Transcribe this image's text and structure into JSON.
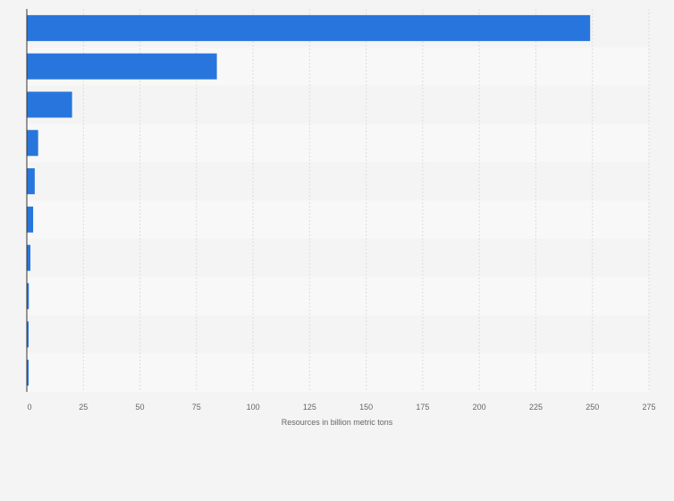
{
  "chart_data": {
    "type": "bar",
    "orientation": "horizontal",
    "title": "",
    "xlabel": "Resources in billion metric tons",
    "ylabel": "",
    "xlim": [
      0,
      275
    ],
    "xticks": [
      0,
      25,
      50,
      75,
      100,
      125,
      150,
      175,
      200,
      225,
      250,
      275
    ],
    "categories": [
      "",
      "",
      "",
      "",
      "",
      "",
      "",
      "",
      "",
      ""
    ],
    "values": [
      249,
      84,
      20,
      5,
      3.5,
      2.8,
      1.6,
      0.9,
      0.8,
      0.8
    ],
    "grid": true,
    "legend": "none",
    "colors": {
      "bar": "#2876dd",
      "band_even": "#f4f4f4",
      "band_odd": "#f8f8f8",
      "grid": "#dddddd",
      "axis": "#333333",
      "text": "#666666"
    }
  }
}
